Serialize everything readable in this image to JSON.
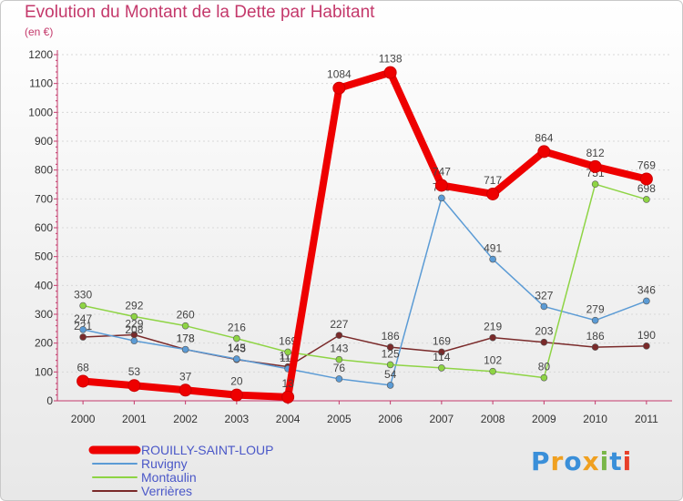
{
  "title": "Evolution du Montant de la Dette par Habitant",
  "unit": "(en €)",
  "logo": {
    "text": "Proxiti",
    "letters": [
      {
        "ch": "P",
        "color": "#3a8fd9"
      },
      {
        "ch": "r",
        "color": "#f0a020"
      },
      {
        "ch": "o",
        "color": "#3a8fd9"
      },
      {
        "ch": "x",
        "color": "#f0a020"
      },
      {
        "ch": "i",
        "color": "#7ab648"
      },
      {
        "ch": "t",
        "color": "#3a8fd9"
      },
      {
        "ch": "i",
        "color": "#e8402a"
      }
    ]
  },
  "chart_data": {
    "type": "line",
    "title": "Evolution du Montant de la Dette par Habitant",
    "subtitle": "(en €)",
    "xlabel": "",
    "ylabel": "",
    "x": [
      "2000",
      "2001",
      "2002",
      "2003",
      "2004",
      "2005",
      "2006",
      "2007",
      "2008",
      "2009",
      "2010",
      "2011"
    ],
    "ylim": [
      0,
      1200
    ],
    "yticks": [
      0,
      100,
      200,
      300,
      400,
      500,
      600,
      700,
      800,
      900,
      1000,
      1100,
      1200
    ],
    "grid": "horizontal",
    "legend": "bottom-left",
    "series": [
      {
        "name": "ROUILLY-SAINT-LOUP",
        "color": "#ee0000",
        "values": [
          68,
          53,
          37,
          20,
          13,
          1084,
          1138,
          747,
          717,
          864,
          812,
          769
        ],
        "labels": [
          "68",
          "53",
          "37",
          "20",
          "13",
          "1084",
          "1138",
          "747",
          "717",
          "864",
          "812",
          "769"
        ]
      },
      {
        "name": "Ruvigny",
        "color": "#5b9bd5",
        "values": [
          247,
          208,
          178,
          145,
          111,
          76,
          54,
          703,
          491,
          327,
          279,
          346
        ],
        "labels": [
          "247",
          "208",
          "178",
          "145",
          "111",
          "76",
          "54",
          "703",
          "491",
          "327",
          "279",
          "346"
        ]
      },
      {
        "name": "Montaulin",
        "color": "#8ed444",
        "values": [
          330,
          292,
          260,
          216,
          169,
          143,
          125,
          114,
          102,
          80,
          751,
          698
        ],
        "labels": [
          "330",
          "292",
          "260",
          "216",
          "169",
          "143",
          "125",
          "114",
          "102",
          "80",
          "751",
          "698"
        ]
      },
      {
        "name": "Verrières",
        "color": "#7a2a2a",
        "values": [
          221,
          229,
          178,
          143,
          118,
          227,
          186,
          169,
          219,
          203,
          186,
          190
        ],
        "labels": [
          "221",
          "229",
          "178",
          "143",
          "118",
          "227",
          "186",
          "169",
          "219",
          "203",
          "186",
          "190"
        ]
      }
    ]
  }
}
